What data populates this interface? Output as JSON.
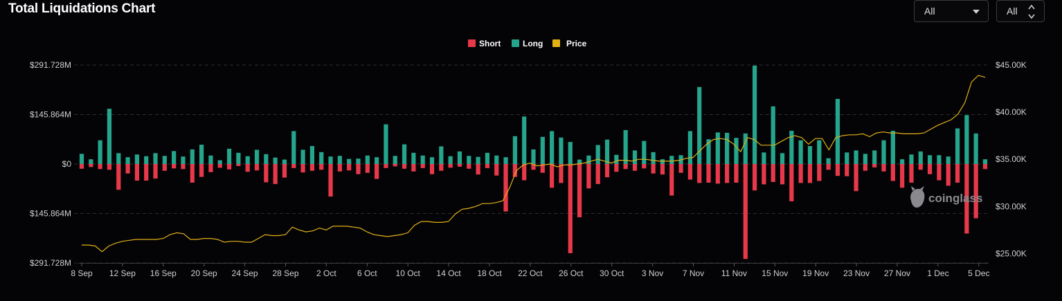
{
  "header": {
    "title": "Total Liquidations Chart",
    "range_select": "All",
    "coin_select": "All"
  },
  "colors": {
    "short": "#e8394a",
    "long": "#24a58c",
    "price": "#e3b116",
    "grid": "#2c2c33",
    "background": "#040407"
  },
  "watermark": {
    "text": "coinglass",
    "icon": "coinglass-logo-icon"
  },
  "chart_data": {
    "type": "bar",
    "title": "Total Liquidations Chart",
    "legend": {
      "position": "top-center",
      "entries": [
        "Short",
        "Long",
        "Price"
      ]
    },
    "grid": true,
    "y_left": {
      "ticks": [
        "$291.728M",
        "$145.864M",
        "$0",
        "$145.864M",
        "$291.728M"
      ],
      "range_musd": [
        -291.728,
        291.728
      ]
    },
    "y_right": {
      "ticks": [
        "$45.00K",
        "$40.00K",
        "$35.00K",
        "$30.00K",
        "$25.00K"
      ],
      "range_kusd": [
        24,
        45
      ]
    },
    "x_ticks": [
      "8 Sep",
      "12 Sep",
      "16 Sep",
      "20 Sep",
      "24 Sep",
      "28 Sep",
      "2 Oct",
      "6 Oct",
      "10 Oct",
      "14 Oct",
      "18 Oct",
      "22 Oct",
      "26 Oct",
      "30 Oct",
      "3 Nov",
      "7 Nov",
      "11 Nov",
      "15 Nov",
      "19 Nov",
      "23 Nov",
      "27 Nov",
      "1 Dec",
      "5 Dec"
    ],
    "start_date": "8 Sep",
    "end_date": "5 Dec",
    "series": [
      {
        "name": "Long",
        "values": [
          30,
          14,
          70,
          163,
          32,
          20,
          28,
          23,
          32,
          24,
          38,
          22,
          43,
          57,
          25,
          11,
          45,
          33,
          23,
          42,
          29,
          19,
          13,
          97,
          42,
          53,
          35,
          22,
          24,
          15,
          16,
          25,
          20,
          117,
          24,
          58,
          33,
          25,
          20,
          52,
          23,
          37,
          24,
          21,
          33,
          25,
          20,
          82,
          140,
          43,
          80,
          97,
          78,
          65,
          13,
          25,
          56,
          72,
          27,
          100,
          40,
          68,
          35,
          14,
          24,
          26,
          97,
          227,
          73,
          93,
          92,
          77,
          90,
          290,
          34,
          170,
          32,
          98,
          70,
          53,
          70,
          17,
          192,
          34,
          40,
          30,
          40,
          70,
          98,
          14,
          28,
          37,
          26,
          26,
          22,
          105,
          144,
          90,
          14
        ]
      },
      {
        "name": "Short",
        "values": [
          14,
          9,
          15,
          17,
          76,
          28,
          49,
          49,
          43,
          20,
          13,
          15,
          55,
          38,
          24,
          11,
          16,
          6,
          23,
          19,
          54,
          59,
          40,
          12,
          25,
          20,
          17,
          96,
          22,
          19,
          30,
          26,
          44,
          12,
          7,
          14,
          22,
          12,
          30,
          20,
          11,
          8,
          14,
          31,
          12,
          34,
          140,
          38,
          48,
          17,
          26,
          70,
          56,
          263,
          157,
          72,
          59,
          39,
          23,
          15,
          20,
          13,
          28,
          31,
          93,
          26,
          46,
          56,
          55,
          58,
          56,
          55,
          280,
          78,
          60,
          53,
          60,
          110,
          56,
          56,
          50,
          17,
          35,
          36,
          80,
          20,
          10,
          22,
          50,
          70,
          55,
          17,
          30,
          48,
          64,
          55,
          205,
          160,
          15
        ]
      },
      {
        "name": "Price",
        "values": [
          25.9,
          25.9,
          25.8,
          25.2,
          25.8,
          26.1,
          26.3,
          26.4,
          26.5,
          26.5,
          26.5,
          26.5,
          26.6,
          27.0,
          27.2,
          27.1,
          26.5,
          26.5,
          26.6,
          26.6,
          26.5,
          26.2,
          26.3,
          26.3,
          26.2,
          26.2,
          26.6,
          27.0,
          26.9,
          26.9,
          27.0,
          27.8,
          27.5,
          27.3,
          27.4,
          27.7,
          27.5,
          27.9,
          27.9,
          27.9,
          27.8,
          27.7,
          27.3,
          27.0,
          26.9,
          26.8,
          26.9,
          27.0,
          27.2,
          28.0,
          28.4,
          28.4,
          28.3,
          28.3,
          28.4,
          29.2,
          29.7,
          29.8,
          30.0,
          30.3,
          30.3,
          30.4,
          30.6,
          32.0,
          33.8,
          34.4,
          34.6,
          34.3,
          34.4,
          34.5,
          34.2,
          34.4,
          34.4,
          34.5,
          34.6,
          34.8,
          35.0,
          34.8,
          34.6,
          34.9,
          34.9,
          34.8,
          35.0,
          35.0,
          34.9,
          34.8,
          34.8,
          34.8,
          34.9,
          35.1,
          35.2,
          35.9,
          36.6,
          37.1,
          37.2,
          37.1,
          36.6,
          35.8,
          37.3,
          37.1,
          36.5,
          36.5,
          36.5,
          36.9,
          37.3,
          37.5,
          37.3,
          36.6,
          37.2,
          37.2,
          36.0,
          37.3,
          37.5,
          37.6,
          37.6,
          37.7,
          37.4,
          37.8,
          37.9,
          37.8,
          37.8,
          37.7,
          37.7,
          37.7,
          37.8,
          38.2,
          38.6,
          38.9,
          39.2,
          39.8,
          41.0,
          43.2,
          43.9,
          43.7
        ]
      }
    ]
  }
}
